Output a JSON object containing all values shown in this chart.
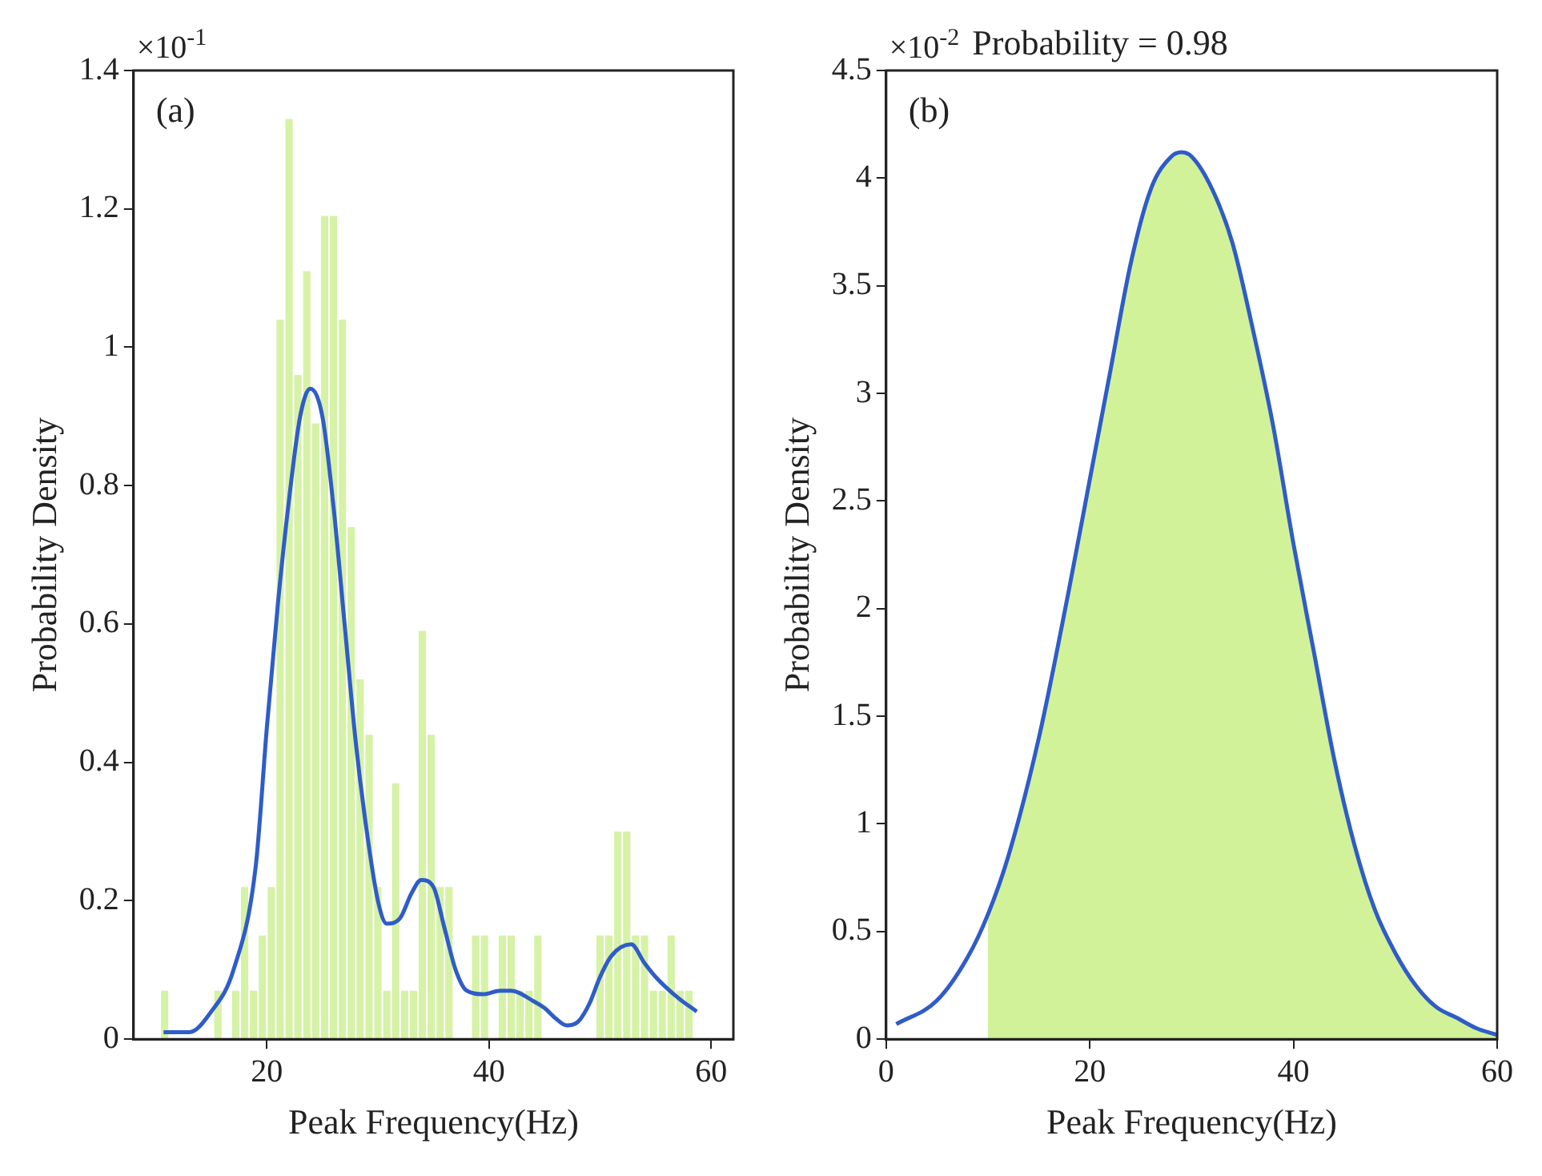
{
  "chart_data": [
    {
      "type": "histogram",
      "xlabel": "Peak Frequency(Hz)",
      "ylabel": "Probability Density",
      "annotations": [
        "×10$^{-1}$",
        "(a)"
      ],
      "color": "#d6f2a6",
      "bins": [
        10.4,
        11.2,
        12.0,
        12.8,
        13.6,
        14.4,
        15.2,
        16.0,
        16.8,
        17.6,
        18.4,
        19.2,
        20.0,
        20.8,
        21.6,
        22.4,
        23.2,
        24.0,
        24.8,
        25.6,
        26.4,
        27.2,
        28.0,
        28.8,
        29.6,
        30.4,
        31.2,
        32.0,
        32.8,
        33.6,
        34.4,
        35.2,
        36.0,
        36.8,
        37.6,
        38.4,
        39.2,
        40.0,
        40.8,
        41.6,
        42.4,
        43.2,
        44.0,
        44.8,
        45.6,
        46.4,
        47.2,
        48.0,
        48.8,
        49.6,
        50.4,
        51.2,
        52.0,
        52.8,
        53.6,
        54.4,
        55.2,
        56.0,
        56.8,
        57.6,
        58.4,
        59.2
      ],
      "values": [
        0.07,
        0,
        0,
        0,
        0,
        0,
        0.07,
        0,
        0.07,
        0.22,
        0.07,
        0.15,
        0.22,
        1.04,
        1.33,
        0.96,
        1.11,
        0.89,
        1.19,
        1.19,
        1.04,
        0.74,
        0.52,
        0.44,
        0.22,
        0.07,
        0.37,
        0.07,
        0.07,
        0.59,
        0.44,
        0.22,
        0.22,
        0,
        0,
        0.15,
        0.15,
        0,
        0.15,
        0.15,
        0.07,
        0.07,
        0.15,
        0,
        0,
        0,
        0,
        0,
        0,
        0.15,
        0.15,
        0.3,
        0.3,
        0.15,
        0.15,
        0.07,
        0.07,
        0.15,
        0.07,
        0.07,
        0
      ],
      "series": [
        {
          "type": "line",
          "color": "#2f5cc8",
          "x": [
            10.7,
            13,
            15,
            17,
            19,
            20,
            21,
            22,
            23,
            23.9,
            25,
            26,
            27,
            28,
            29,
            30,
            30.8,
            32,
            33,
            33.9,
            35,
            36,
            37,
            38,
            39.5,
            41,
            42,
            44,
            45,
            46,
            47,
            48,
            49,
            50,
            51,
            52.8,
            54,
            55,
            57,
            58.7
          ],
          "values": [
            0.01,
            0.01,
            0.04,
            0.1,
            0.25,
            0.45,
            0.63,
            0.78,
            0.9,
            0.94,
            0.9,
            0.77,
            0.6,
            0.43,
            0.3,
            0.2,
            0.167,
            0.175,
            0.21,
            0.23,
            0.22,
            0.16,
            0.1,
            0.07,
            0.065,
            0.07,
            0.07,
            0.055,
            0.045,
            0.03,
            0.02,
            0.025,
            0.05,
            0.09,
            0.12,
            0.137,
            0.11,
            0.09,
            0.06,
            0.04
          ]
        }
      ],
      "xlim": [
        8,
        62
      ],
      "xticks": [
        20,
        40,
        60
      ],
      "ylim": [
        0,
        1.4
      ],
      "yticks": [
        0,
        0.2,
        0.4,
        0.6,
        0.8,
        1,
        1.2,
        1.4
      ],
      "grid": false,
      "legend": false
    },
    {
      "type": "line",
      "title": "Probability = 0.98",
      "xlabel": "Peak Frequency(Hz)",
      "ylabel": "Probability Density",
      "annotations": [
        "×10$^{-2}$",
        "(b)"
      ],
      "series": [
        {
          "type": "area",
          "color": "#d2f29a",
          "x": [
            10,
            12,
            15,
            18,
            20,
            22,
            24,
            26,
            28,
            29,
            30,
            32,
            34,
            36,
            38,
            40,
            42,
            44,
            46,
            48,
            50,
            52,
            54,
            56,
            58,
            60
          ],
          "values": [
            0.58,
            0.85,
            1.4,
            2.1,
            2.6,
            3.1,
            3.6,
            3.95,
            4.1,
            4.12,
            4.1,
            3.95,
            3.7,
            3.3,
            2.85,
            2.3,
            1.8,
            1.3,
            0.9,
            0.6,
            0.4,
            0.25,
            0.15,
            0.1,
            0.05,
            0.02
          ]
        },
        {
          "type": "line",
          "color": "#2f5cc8",
          "x": [
            1,
            5,
            8,
            10,
            12,
            15,
            18,
            20,
            22,
            24,
            26,
            28,
            29,
            30,
            32,
            34,
            36,
            38,
            40,
            42,
            44,
            46,
            48,
            50,
            52,
            54,
            56,
            58,
            60
          ],
          "values": [
            0.07,
            0.18,
            0.38,
            0.58,
            0.85,
            1.4,
            2.1,
            2.6,
            3.1,
            3.6,
            3.95,
            4.1,
            4.12,
            4.1,
            3.95,
            3.7,
            3.3,
            2.85,
            2.3,
            1.8,
            1.3,
            0.9,
            0.6,
            0.4,
            0.25,
            0.15,
            0.1,
            0.05,
            0.02
          ]
        }
      ],
      "xlim": [
        0,
        60
      ],
      "xticks": [
        0,
        20,
        40,
        60
      ],
      "ylim": [
        0,
        4.5
      ],
      "yticks": [
        0,
        0.5,
        1,
        1.5,
        2,
        2.5,
        3,
        3.5,
        4,
        4.5
      ],
      "grid": false,
      "legend": false
    }
  ]
}
